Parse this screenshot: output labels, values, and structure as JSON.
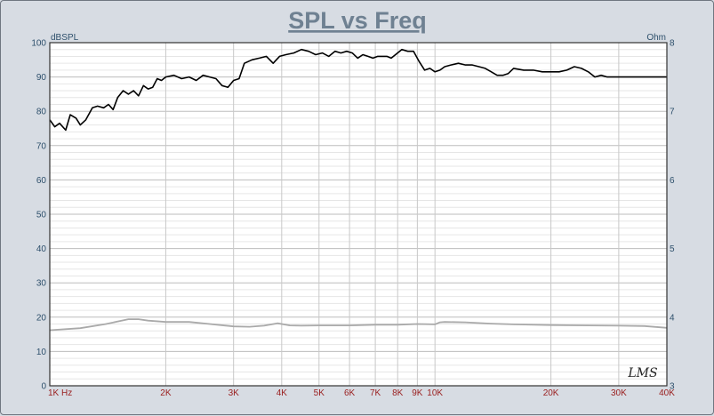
{
  "chart_data": {
    "type": "line",
    "title": "SPL vs Freq",
    "ylabel_left": "dBSPL",
    "ylabel_right": "Ohm",
    "xlabel_unit": "Hz",
    "x_scale": "log",
    "xlim": [
      1000,
      40000
    ],
    "ylim_left": [
      0,
      100
    ],
    "ylim_right": [
      3,
      8
    ],
    "grid": true,
    "x_tick_labels": [
      {
        "value": 1000,
        "label": "1K"
      },
      {
        "value": 2000,
        "label": "2K"
      },
      {
        "value": 3000,
        "label": "3K"
      },
      {
        "value": 4000,
        "label": "4K"
      },
      {
        "value": 5000,
        "label": "5K"
      },
      {
        "value": 6000,
        "label": "6K"
      },
      {
        "value": 7000,
        "label": "7K"
      },
      {
        "value": 8000,
        "label": "8K"
      },
      {
        "value": 9000,
        "label": "9K"
      },
      {
        "value": 10000,
        "label": "10K"
      },
      {
        "value": 20000,
        "label": "20K"
      },
      {
        "value": 30000,
        "label": "30K"
      },
      {
        "value": 40000,
        "label": "40K"
      }
    ],
    "y_left_ticks": [
      "0",
      "10",
      "20",
      "30",
      "40",
      "50",
      "60",
      "70",
      "80",
      "90",
      "100"
    ],
    "y_right_ticks": [
      "3",
      "4",
      "5",
      "6",
      "7",
      "8"
    ],
    "watermark": "LMS",
    "series": [
      {
        "color": "#000000",
        "axis": "left",
        "x": [
          1000,
          1030,
          1060,
          1100,
          1130,
          1170,
          1200,
          1240,
          1290,
          1330,
          1380,
          1420,
          1460,
          1500,
          1550,
          1600,
          1650,
          1700,
          1750,
          1800,
          1850,
          1900,
          1950,
          2000,
          2100,
          2200,
          2300,
          2400,
          2500,
          2600,
          2700,
          2800,
          2900,
          3000,
          3100,
          3200,
          3350,
          3500,
          3650,
          3800,
          3950,
          4100,
          4300,
          4500,
          4700,
          4900,
          5100,
          5300,
          5500,
          5700,
          5900,
          6100,
          6300,
          6500,
          6700,
          6900,
          7100,
          7300,
          7500,
          7700,
          7900,
          8200,
          8500,
          8800,
          9100,
          9400,
          9700,
          10000,
          10300,
          10600,
          11000,
          11500,
          12000,
          12500,
          13000,
          13500,
          14000,
          14500,
          15000,
          15500,
          16000,
          17000,
          18000,
          19000,
          20000,
          21000,
          22000,
          23000,
          24000,
          25000,
          26000,
          27000,
          28000,
          29000,
          30000,
          31000,
          32000,
          33000,
          34000,
          35000,
          36000,
          37000,
          38000,
          39000,
          40000
        ],
        "y": [
          77.5,
          75.5,
          76.5,
          74.5,
          79,
          78,
          76,
          77.5,
          81,
          81.5,
          81,
          82,
          80.5,
          84,
          86,
          85,
          86,
          84.5,
          87.5,
          86.5,
          87,
          89.5,
          89,
          90,
          90.5,
          89.5,
          90,
          89,
          90.5,
          90,
          89.5,
          87.5,
          87,
          89,
          89.5,
          94,
          95,
          95.5,
          96,
          94,
          96,
          96.5,
          97,
          98,
          97.5,
          96.5,
          97,
          96,
          97.5,
          97,
          97.5,
          97,
          95.5,
          96.5,
          96,
          95.5,
          96,
          96,
          96,
          95.5,
          96.5,
          98,
          97.5,
          97.5,
          94.5,
          92,
          92.5,
          91.5,
          92,
          93,
          93.5,
          94,
          93.5,
          93.5,
          93,
          92.5,
          91.5,
          90.5,
          90.5,
          91,
          92.5,
          92,
          92,
          91.5,
          91.5,
          91.5,
          92,
          93,
          92.5,
          91.5,
          90,
          90.5,
          90,
          90,
          90,
          90,
          90,
          90,
          90,
          90,
          90,
          90,
          90,
          90,
          90
        ]
      },
      {
        "color": "#a9a9a9",
        "axis": "left",
        "x": [
          1000,
          1200,
          1400,
          1600,
          1700,
          1800,
          2000,
          2300,
          2600,
          3000,
          3300,
          3600,
          3900,
          4000,
          4200,
          4500,
          5000,
          6000,
          7000,
          8000,
          9000,
          10000,
          10300,
          10600,
          12000,
          14000,
          16000,
          20000,
          25000,
          30000,
          35000,
          40000
        ],
        "y": [
          16.2,
          16.8,
          18.0,
          19.4,
          19.4,
          19.0,
          18.6,
          18.6,
          18.0,
          17.3,
          17.2,
          17.5,
          18.2,
          18.0,
          17.6,
          17.5,
          17.6,
          17.6,
          17.8,
          17.8,
          18.0,
          17.9,
          18.5,
          18.6,
          18.5,
          18.1,
          17.9,
          17.7,
          17.6,
          17.5,
          17.4,
          16.9
        ]
      }
    ]
  }
}
